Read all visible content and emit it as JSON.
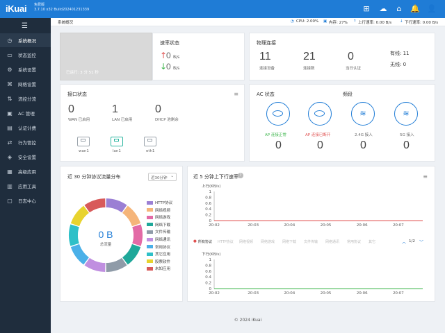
{
  "brand": {
    "logo": "iKuai",
    "edition": "免费版",
    "build": "3.7.10 x32 Build202401231339"
  },
  "top_stats": {
    "cpu": "CPU: 2.00%",
    "mem": "内存: 27%",
    "up": "上行速率: 0.00 B/s",
    "down": "下行速率: 0.00 B/s"
  },
  "colors": {
    "header": "#1f7cd6",
    "sidebar": "#1f2d3d",
    "accent": "#1f7cd6",
    "up_arrow": "#e0504f",
    "down_arrow": "#3bb54a",
    "ap_ok": "#3bb54a",
    "ap_bad": "#e0504f"
  },
  "sidebar": {
    "items": [
      {
        "label": "系统概况",
        "icon": "gauge-icon"
      },
      {
        "label": "状态监控",
        "icon": "monitor-icon"
      },
      {
        "label": "系统设置",
        "icon": "gear-icon"
      },
      {
        "label": "网络设置",
        "icon": "network-icon"
      },
      {
        "label": "流控分流",
        "icon": "flow-icon"
      },
      {
        "label": "AC 管理",
        "icon": "ac-icon"
      },
      {
        "label": "认证计费",
        "icon": "auth-icon"
      },
      {
        "label": "行为管控",
        "icon": "behavior-icon"
      },
      {
        "label": "安全设置",
        "icon": "shield-icon"
      },
      {
        "label": "高级应用",
        "icon": "advanced-icon"
      },
      {
        "label": "应用工具",
        "icon": "tools-icon"
      },
      {
        "label": "日志中心",
        "icon": "log-icon"
      }
    ]
  },
  "breadcrumb": "系统概况",
  "uptime": "已运行: 3 分 51 秒",
  "rate": {
    "title": "速率状态",
    "up_value": "0",
    "up_unit": "B/s",
    "down_value": "0",
    "down_unit": "B/s"
  },
  "phys": {
    "title": "物理连接",
    "devices": "11",
    "devices_label": "连接设备",
    "connections": "21",
    "connections_label": "连接数",
    "auth": "0",
    "auth_label": "当日认证",
    "wired_label": "有线:",
    "wired": "11",
    "wireless_label": "无线:",
    "wireless": "0"
  },
  "iface": {
    "title": "接口状态",
    "wan": "0",
    "wan_label": "WAN 已启用",
    "lan": "1",
    "lan_label": "LAN 已启用",
    "dhcp": "0",
    "dhcp_label": "DHCP 池剩余",
    "ports": [
      "wan1",
      "lan1",
      "eth1"
    ]
  },
  "ac": {
    "title": "AC 状态",
    "band_title": "频段",
    "ap_ok_label": "AP 连接正常",
    "ap_ok": "0",
    "ap_bad_label": "AP 连接已断开",
    "ap_bad": "0",
    "g24_label": "2.4G 接入",
    "g24": "0",
    "g5_label": "5G 接入",
    "g5": "0"
  },
  "proto": {
    "title": "近 30 分钟协议流量分布",
    "select": "近30分钟",
    "total_value": "0 B",
    "total_label": "总流量",
    "legend": [
      {
        "name": "HTTP协议",
        "color": "#9b7fd4"
      },
      {
        "name": "网络视频",
        "color": "#f5b57a"
      },
      {
        "name": "网络游戏",
        "color": "#e36aa6"
      },
      {
        "name": "网络下载",
        "color": "#1fa89a"
      },
      {
        "name": "文件传输",
        "color": "#8f9ba8"
      },
      {
        "name": "网络通讯",
        "color": "#c08fe0"
      },
      {
        "name": "常用协议",
        "color": "#4ab0e8"
      },
      {
        "name": "其它应用",
        "color": "#2ec0c8"
      },
      {
        "name": "股票软件",
        "color": "#e8d32e"
      },
      {
        "name": "未知应用",
        "color": "#d85a5a"
      }
    ]
  },
  "rate5": {
    "title": "近 5 分钟上下行速率",
    "up_label": "上行",
    "down_label": "下行",
    "unit": "(KB/s)",
    "tabs": [
      "所有协议",
      "HTTP协议",
      "网络视频",
      "网络游戏",
      "网络下载",
      "文件传输",
      "网络通讯",
      "常用协议",
      "其它"
    ],
    "page": "1/2"
  },
  "chart_data": [
    {
      "type": "line",
      "title": "上行",
      "ylabel": "(KB/s)",
      "x": [
        "20:02",
        "20:03",
        "20:04",
        "20:05",
        "20:06",
        "20:07"
      ],
      "y_ticks": [
        1,
        0.8,
        0.6,
        0.4,
        0.2,
        0
      ],
      "ylim": [
        0,
        1
      ],
      "series": [
        {
          "values": [
            0,
            0,
            0,
            0,
            0,
            0
          ],
          "color": "#e0504f"
        }
      ]
    },
    {
      "type": "line",
      "title": "下行",
      "ylabel": "(KB/s)",
      "x": [
        "20:02",
        "20:03",
        "20:04",
        "20:05",
        "20:06",
        "20:07"
      ],
      "y_ticks": [
        1,
        0.8,
        0.6,
        0.4,
        0.2,
        0
      ],
      "ylim": [
        0,
        1
      ],
      "series": [
        {
          "values": [
            0,
            0,
            0,
            0,
            0,
            0
          ],
          "color": "#3bb54a"
        }
      ]
    }
  ],
  "footer": "© 2024 iKuai"
}
